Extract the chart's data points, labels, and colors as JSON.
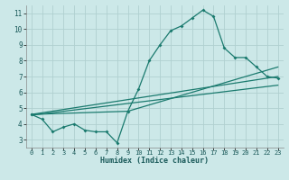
{
  "xlabel": "Humidex (Indice chaleur)",
  "xlim": [
    -0.5,
    23.5
  ],
  "ylim": [
    2.5,
    11.5
  ],
  "xticks": [
    0,
    1,
    2,
    3,
    4,
    5,
    6,
    7,
    8,
    9,
    10,
    11,
    12,
    13,
    14,
    15,
    16,
    17,
    18,
    19,
    20,
    21,
    22,
    23
  ],
  "yticks": [
    3,
    4,
    5,
    6,
    7,
    8,
    9,
    10,
    11
  ],
  "background_color": "#cce8e8",
  "grid_color": "#b0d0d0",
  "line_color": "#1a7a6e",
  "line1_x": [
    0,
    1,
    2,
    3,
    4,
    5,
    6,
    7,
    8,
    9,
    10,
    11,
    12,
    13,
    14,
    15,
    16,
    17,
    18,
    19,
    20,
    21,
    22,
    23
  ],
  "line1_y": [
    4.6,
    4.3,
    3.5,
    3.8,
    4.0,
    3.6,
    3.5,
    3.5,
    2.8,
    4.8,
    6.2,
    8.0,
    9.0,
    9.9,
    10.2,
    10.7,
    11.2,
    10.8,
    8.8,
    8.2,
    8.2,
    7.6,
    7.0,
    6.9
  ],
  "line2_x": [
    0,
    23
  ],
  "line2_y": [
    4.6,
    7.0
  ],
  "line3_x": [
    0,
    9,
    23
  ],
  "line3_y": [
    4.6,
    4.8,
    7.6
  ],
  "line4_x": [
    0,
    23
  ],
  "line4_y": [
    4.55,
    6.45
  ]
}
